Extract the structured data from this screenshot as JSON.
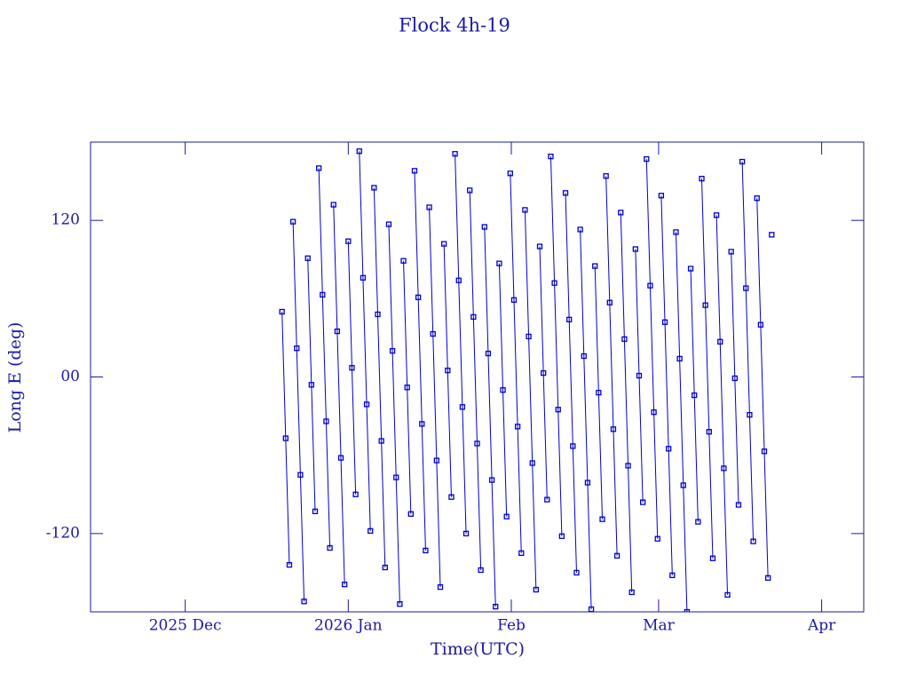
{
  "chart_data": {
    "type": "line",
    "title": "Flock 4h-19",
    "x_label": "Time(UTC)",
    "y_label": "Long E (deg)",
    "xlim": [
      -18,
      129
    ],
    "xticks": [
      {
        "value": 0,
        "label": "2025 Dec"
      },
      {
        "value": 31,
        "label": "2026 Jan"
      },
      {
        "value": 62,
        "label": "Feb"
      },
      {
        "value": 90,
        "label": "Mar"
      },
      {
        "value": 121,
        "label": "Apr"
      }
    ],
    "ylim": [
      -180,
      180
    ],
    "yticks": [
      -120,
      {
        "value": 0,
        "label": "00"
      },
      120
    ],
    "series": [
      {
        "color": "#0000cc",
        "x": [
          18.4,
          19.1,
          19.8,
          null,
          20.5,
          21.2,
          21.9,
          22.6,
          null,
          23.3,
          24.0,
          24.7,
          null,
          25.4,
          26.1,
          26.8,
          27.5,
          null,
          28.2,
          28.9,
          29.6,
          30.3,
          null,
          31.0,
          31.7,
          32.4,
          null,
          33.1,
          33.8,
          34.5,
          35.2,
          null,
          35.9,
          36.6,
          37.3,
          38.0,
          null,
          38.7,
          39.4,
          40.1,
          40.8,
          null,
          41.5,
          42.2,
          42.9,
          null,
          43.6,
          44.3,
          45.0,
          45.7,
          null,
          46.4,
          47.1,
          47.8,
          48.5,
          null,
          49.2,
          49.9,
          50.6,
          null,
          51.3,
          52.0,
          52.7,
          53.4,
          null,
          54.1,
          54.8,
          55.5,
          56.2,
          null,
          56.9,
          57.6,
          58.3,
          59.0,
          null,
          59.7,
          60.4,
          61.1,
          null,
          61.8,
          62.5,
          63.2,
          63.9,
          null,
          64.6,
          65.3,
          66.0,
          66.7,
          null,
          67.4,
          68.1,
          68.8,
          null,
          69.5,
          70.2,
          70.9,
          71.6,
          null,
          72.3,
          73.0,
          73.7,
          74.4,
          null,
          75.1,
          75.8,
          76.5,
          77.2,
          null,
          77.9,
          78.6,
          79.3,
          null,
          80.0,
          80.7,
          81.4,
          82.1,
          null,
          82.8,
          83.5,
          84.2,
          84.9,
          null,
          85.6,
          86.3,
          87.0,
          null,
          87.7,
          88.4,
          89.1,
          89.8,
          null,
          90.5,
          91.2,
          91.9,
          92.6,
          null,
          93.3,
          94.0,
          94.7,
          95.4,
          null,
          96.1,
          96.8,
          97.5,
          null,
          98.2,
          98.9,
          99.6,
          100.3,
          null,
          101.0,
          101.7,
          102.4,
          103.1,
          null,
          103.8,
          104.5,
          105.2,
          null,
          105.9,
          106.6,
          107.3,
          108.0,
          null,
          108.7,
          109.4,
          110.1,
          110.8,
          null,
          111.5
        ],
        "values": [
          50,
          -47,
          -144,
          null,
          119,
          22,
          -75,
          -172,
          null,
          91,
          -6,
          -103,
          null,
          160,
          63,
          -34,
          -131,
          null,
          132,
          35,
          -62,
          -159,
          null,
          104,
          7,
          -90,
          null,
          173,
          76,
          -21,
          -118,
          null,
          145,
          48,
          -49,
          -146,
          null,
          117,
          20,
          -77,
          -174,
          null,
          89,
          -8,
          -105,
          null,
          158,
          61,
          -36,
          -133,
          null,
          130,
          33,
          -64,
          -161,
          null,
          102,
          5,
          -92,
          null,
          171,
          74,
          -23,
          -120,
          null,
          143,
          46,
          -51,
          -148,
          null,
          115,
          18,
          -79,
          -176,
          null,
          87,
          -10,
          -107,
          null,
          156,
          59,
          -38,
          -135,
          null,
          128,
          31,
          -66,
          -163,
          null,
          100,
          3,
          -94,
          null,
          169,
          72,
          -25,
          -122,
          null,
          141,
          44,
          -53,
          -150,
          null,
          113,
          16,
          -81,
          -178,
          null,
          85,
          -12,
          -109,
          null,
          154,
          57,
          -40,
          -137,
          null,
          126,
          29,
          -68,
          -165,
          null,
          98,
          1,
          -96,
          null,
          167,
          70,
          -27,
          -124,
          null,
          139,
          42,
          -55,
          -152,
          null,
          111,
          14,
          -83,
          -180,
          null,
          83,
          -14,
          -111,
          null,
          152,
          55,
          -42,
          -139,
          null,
          124,
          27,
          -70,
          -167,
          null,
          96,
          -1,
          -98,
          null,
          165,
          68,
          -29,
          -126,
          null,
          137,
          40,
          -57,
          -154,
          null,
          109
        ]
      }
    ]
  }
}
